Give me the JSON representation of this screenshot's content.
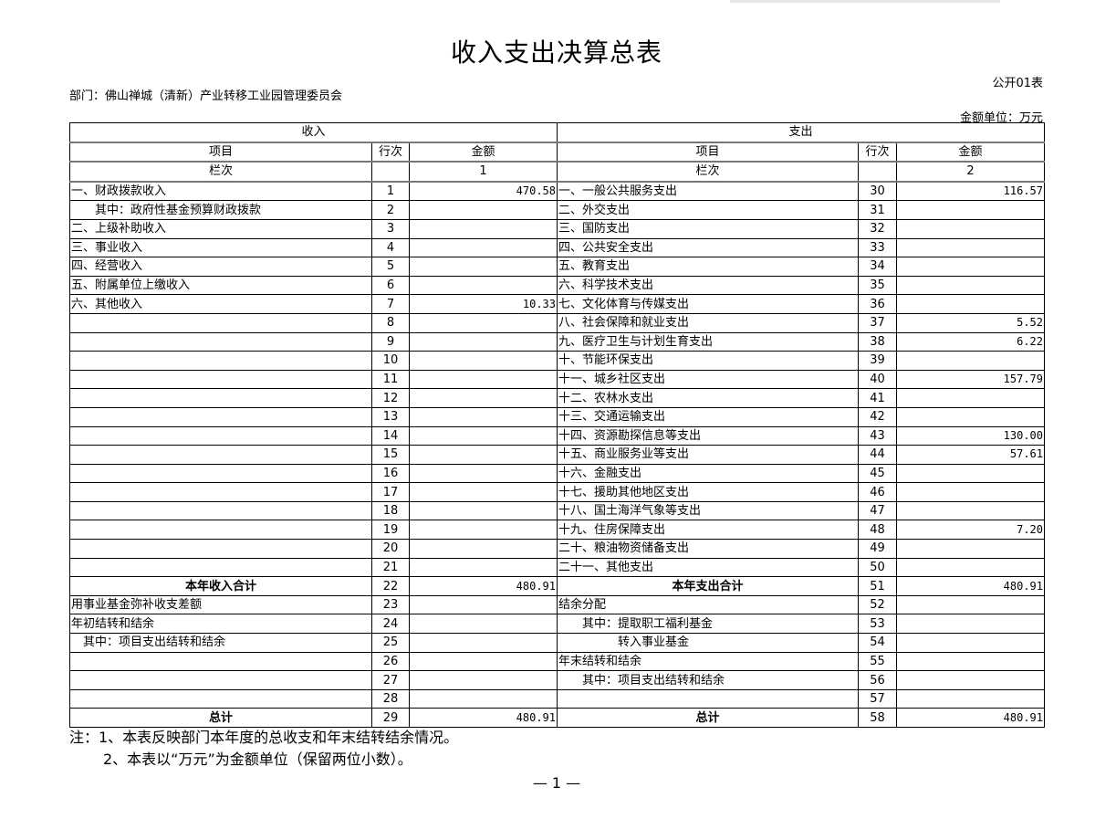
{
  "title": "收入支出决算总表",
  "form_no": "公开01表",
  "department": "部门：佛山禅城（清新）产业转移工业园管理委员会",
  "unit": "金额单位：万元",
  "headers": {
    "income": "收入",
    "expense": "支出",
    "item": "项目",
    "line": "行次",
    "amount": "金额",
    "column_label": "栏次",
    "income_col": "1",
    "expense_col": "2"
  },
  "rows": [
    {
      "in_item": "一、财政拨款收入",
      "in_line": "1",
      "in_amt": "470.58",
      "out_item": "一、一般公共服务支出",
      "out_line": "30",
      "out_amt": "116.57"
    },
    {
      "in_item": "　　其中：政府性基金预算财政拨款",
      "in_line": "2",
      "in_amt": "",
      "out_item": "二、外交支出",
      "out_line": "31",
      "out_amt": ""
    },
    {
      "in_item": "二、上级补助收入",
      "in_line": "3",
      "in_amt": "",
      "out_item": "三、国防支出",
      "out_line": "32",
      "out_amt": ""
    },
    {
      "in_item": "三、事业收入",
      "in_line": "4",
      "in_amt": "",
      "out_item": "四、公共安全支出",
      "out_line": "33",
      "out_amt": ""
    },
    {
      "in_item": "四、经营收入",
      "in_line": "5",
      "in_amt": "",
      "out_item": "五、教育支出",
      "out_line": "34",
      "out_amt": ""
    },
    {
      "in_item": "五、附属单位上缴收入",
      "in_line": "6",
      "in_amt": "",
      "out_item": "六、科学技术支出",
      "out_line": "35",
      "out_amt": ""
    },
    {
      "in_item": "六、其他收入",
      "in_line": "7",
      "in_amt": "10.33",
      "out_item": "七、文化体育与传媒支出",
      "out_line": "36",
      "out_amt": ""
    },
    {
      "in_item": "",
      "in_line": "8",
      "in_amt": "",
      "out_item": "八、社会保障和就业支出",
      "out_line": "37",
      "out_amt": "5.52"
    },
    {
      "in_item": "",
      "in_line": "9",
      "in_amt": "",
      "out_item": "九、医疗卫生与计划生育支出",
      "out_line": "38",
      "out_amt": "6.22"
    },
    {
      "in_item": "",
      "in_line": "10",
      "in_amt": "",
      "out_item": "十、节能环保支出",
      "out_line": "39",
      "out_amt": ""
    },
    {
      "in_item": "",
      "in_line": "11",
      "in_amt": "",
      "out_item": "十一、城乡社区支出",
      "out_line": "40",
      "out_amt": "157.79"
    },
    {
      "in_item": "",
      "in_line": "12",
      "in_amt": "",
      "out_item": "十二、农林水支出",
      "out_line": "41",
      "out_amt": ""
    },
    {
      "in_item": "",
      "in_line": "13",
      "in_amt": "",
      "out_item": "十三、交通运输支出",
      "out_line": "42",
      "out_amt": ""
    },
    {
      "in_item": "",
      "in_line": "14",
      "in_amt": "",
      "out_item": "十四、资源勘探信息等支出",
      "out_line": "43",
      "out_amt": "130.00"
    },
    {
      "in_item": "",
      "in_line": "15",
      "in_amt": "",
      "out_item": "十五、商业服务业等支出",
      "out_line": "44",
      "out_amt": "57.61"
    },
    {
      "in_item": "",
      "in_line": "16",
      "in_amt": "",
      "out_item": "十六、金融支出",
      "out_line": "45",
      "out_amt": ""
    },
    {
      "in_item": "",
      "in_line": "17",
      "in_amt": "",
      "out_item": "十七、援助其他地区支出",
      "out_line": "46",
      "out_amt": ""
    },
    {
      "in_item": "",
      "in_line": "18",
      "in_amt": "",
      "out_item": "十八、国土海洋气象等支出",
      "out_line": "47",
      "out_amt": ""
    },
    {
      "in_item": "",
      "in_line": "19",
      "in_amt": "",
      "out_item": "十九、住房保障支出",
      "out_line": "48",
      "out_amt": "7.20"
    },
    {
      "in_item": "",
      "in_line": "20",
      "in_amt": "",
      "out_item": "二十、粮油物资储备支出",
      "out_line": "49",
      "out_amt": ""
    },
    {
      "in_item": "",
      "in_line": "21",
      "in_amt": "",
      "out_item": "二十一、其他支出",
      "out_line": "50",
      "out_amt": ""
    },
    {
      "in_item": "本年收入合计",
      "in_line": "22",
      "in_amt": "480.91",
      "out_item": "本年支出合计",
      "out_line": "51",
      "out_amt": "480.91",
      "bold": true
    },
    {
      "in_item": "用事业基金弥补收支差额",
      "in_line": "23",
      "in_amt": "",
      "out_item": "结余分配",
      "out_line": "52",
      "out_amt": ""
    },
    {
      "in_item": "年初结转和结余",
      "in_line": "24",
      "in_amt": "",
      "out_item": "　　其中：提取职工福利基金",
      "out_line": "53",
      "out_amt": ""
    },
    {
      "in_item": "　其中：项目支出结转和结余",
      "in_line": "25",
      "in_amt": "",
      "out_item": "　　　　　转入事业基金",
      "out_line": "54",
      "out_amt": ""
    },
    {
      "in_item": "",
      "in_line": "26",
      "in_amt": "",
      "out_item": "年末结转和结余",
      "out_line": "55",
      "out_amt": ""
    },
    {
      "in_item": "",
      "in_line": "27",
      "in_amt": "",
      "out_item": "　　其中：项目支出结转和结余",
      "out_line": "56",
      "out_amt": ""
    },
    {
      "in_item": "",
      "in_line": "28",
      "in_amt": "",
      "out_item": "",
      "out_line": "57",
      "out_amt": ""
    },
    {
      "in_item": "总计",
      "in_line": "29",
      "in_amt": "480.91",
      "out_item": "总计",
      "out_line": "58",
      "out_amt": "480.91",
      "bold": true
    }
  ],
  "notes": [
    "注：1、本表反映部门本年度的总收支和年末结转结余情况。",
    "2、本表以“万元”为金额单位（保留两位小数）。"
  ],
  "page_number": "— 1 —"
}
